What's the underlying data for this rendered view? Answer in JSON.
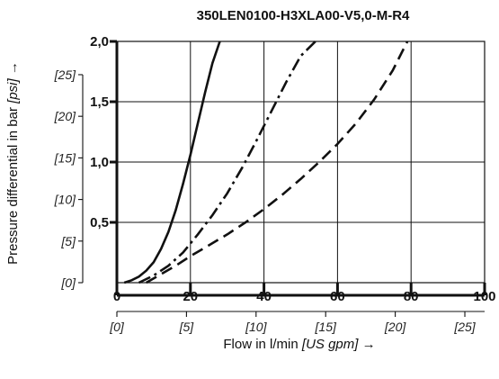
{
  "chart_data": {
    "type": "line",
    "title": "350LEN0100-H3XLA00-V5,0-M-R4",
    "xlabel": "Flow in l/min",
    "xlabel_secondary": "[US gpm]",
    "xlabel_arrow": "→",
    "ylabel": "Pressure differential in bar",
    "ylabel_secondary": "[psi]",
    "ylabel_arrow": "→",
    "xlim": [
      0,
      100
    ],
    "ylim": [
      0,
      2.0
    ],
    "x_ticks": [
      {
        "value": 0,
        "label": "0"
      },
      {
        "value": 20,
        "label": "20"
      },
      {
        "value": 40,
        "label": "40"
      },
      {
        "value": 60,
        "label": "60"
      },
      {
        "value": 80,
        "label": "80"
      },
      {
        "value": 100,
        "label": "100"
      }
    ],
    "x_secondary_ticks": [
      {
        "value": 0,
        "label": "[0]"
      },
      {
        "value": 5,
        "label": "[5]"
      },
      {
        "value": 10,
        "label": "[10]"
      },
      {
        "value": 15,
        "label": "[15]"
      },
      {
        "value": 20,
        "label": "[20]"
      },
      {
        "value": 25,
        "label": "[25]"
      }
    ],
    "x_secondary_factor": 3.785,
    "y_ticks": [
      {
        "value": 0.5,
        "label": "0,5"
      },
      {
        "value": 1.0,
        "label": "1,0"
      },
      {
        "value": 1.5,
        "label": "1,5"
      },
      {
        "value": 2.0,
        "label": "2,0"
      }
    ],
    "y_secondary_ticks": [
      {
        "value": 0,
        "label": "[0]"
      },
      {
        "value": 5,
        "label": "[5]"
      },
      {
        "value": 10,
        "label": "[10]"
      },
      {
        "value": 15,
        "label": "[15]"
      },
      {
        "value": 20,
        "label": "[20]"
      },
      {
        "value": 25,
        "label": "[25]"
      }
    ],
    "y_secondary_factor": 14.5,
    "grid": true,
    "series": [
      {
        "style": "solid",
        "x": [
          2,
          4,
          6,
          8,
          10,
          12,
          14,
          16,
          18,
          20,
          22,
          24,
          26,
          28
        ],
        "y": [
          0.0,
          0.02,
          0.05,
          0.1,
          0.17,
          0.28,
          0.42,
          0.6,
          0.82,
          1.06,
          1.32,
          1.58,
          1.82,
          2.0
        ]
      },
      {
        "style": "dashdot",
        "x": [
          6,
          10,
          14,
          18,
          22,
          26,
          30,
          34,
          38,
          42,
          46,
          50,
          54
        ],
        "y": [
          0.0,
          0.06,
          0.14,
          0.25,
          0.4,
          0.56,
          0.74,
          0.95,
          1.18,
          1.42,
          1.66,
          1.88,
          2.0
        ]
      },
      {
        "style": "dashed",
        "x": [
          8,
          12,
          16,
          20,
          25,
          30,
          35,
          40,
          45,
          50,
          55,
          60,
          65,
          70,
          75,
          79
        ],
        "y": [
          0.0,
          0.07,
          0.14,
          0.22,
          0.31,
          0.4,
          0.5,
          0.61,
          0.73,
          0.86,
          1.0,
          1.15,
          1.32,
          1.52,
          1.76,
          2.0
        ]
      }
    ]
  }
}
